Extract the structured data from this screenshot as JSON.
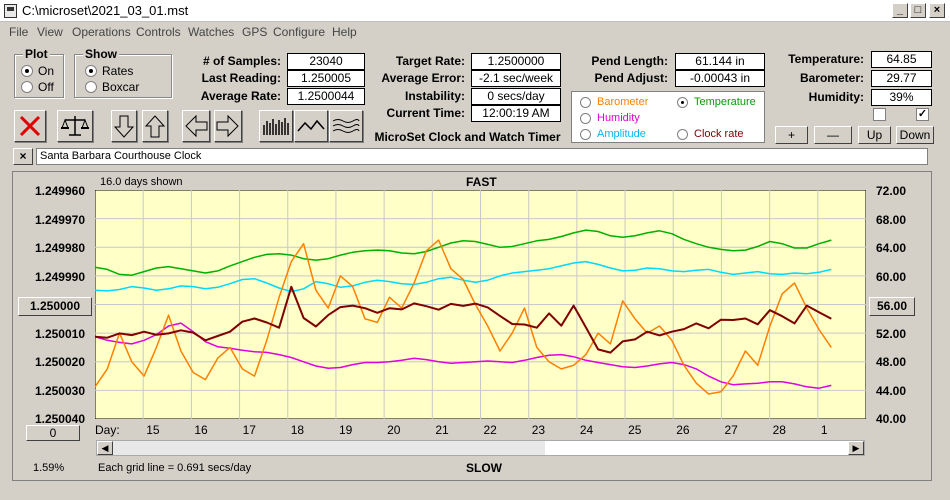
{
  "window": {
    "title": "C:\\microset\\2021_03_01.mst"
  },
  "menu": [
    "File",
    "View",
    "Operations",
    "Controls",
    "Watches",
    "GPS",
    "Configure",
    "Help"
  ],
  "plot_group": {
    "title": "Plot",
    "options": [
      "On",
      "Off"
    ],
    "selected": "On"
  },
  "show_group": {
    "title": "Show",
    "options": [
      "Rates",
      "Boxcar"
    ],
    "selected": "Rates"
  },
  "fields": {
    "samples": {
      "label": "# of Samples:",
      "value": "23040"
    },
    "last_reading": {
      "label": "Last Reading:",
      "value": "1.250005"
    },
    "average_rate": {
      "label": "Average Rate:",
      "value": "1.2500044"
    },
    "target_rate": {
      "label": "Target Rate:",
      "value": "1.2500000"
    },
    "average_error": {
      "label": "Average Error:",
      "value": "-2.1 sec/week"
    },
    "instability": {
      "label": "Instability:",
      "value": "0 secs/day"
    },
    "current_time": {
      "label": "Current Time:",
      "value": "12:00:19 AM"
    },
    "pend_length": {
      "label": "Pend Length:",
      "value": "61.144 in"
    },
    "pend_adjust": {
      "label": "Pend Adjust:",
      "value": "-0.00043 in"
    },
    "temperature": {
      "label": "Temperature:",
      "value": "64.85"
    },
    "barometer": {
      "label": "Barometer:",
      "value": "29.77"
    },
    "humidity": {
      "label": "Humidity:",
      "value": "39%"
    }
  },
  "app_caption": "MicroSet Clock and Watch Timer",
  "legend": {
    "barometer": {
      "label": "Barometer",
      "color": "#ff8000"
    },
    "temperature": {
      "label": "Temperature",
      "color": "#00a000",
      "selected": true
    },
    "humidity": {
      "label": "Humidity",
      "color": "#e000e0"
    },
    "amplitude": {
      "label": "Amplitude",
      "color": "#00c8ff"
    },
    "clock_rate": {
      "label": "Clock rate",
      "color": "#800000"
    }
  },
  "checkboxes": [
    {
      "checked": false
    },
    {
      "checked": true
    }
  ],
  "small_buttons": [
    "+",
    "—",
    "Up",
    "Down"
  ],
  "clock_name": "Santa Barbara Courthouse Clock",
  "chart_header": {
    "days_shown": "16.0 days shown",
    "fast": "FAST",
    "slow": "SLOW",
    "grid_note": "Each grid line = 0.691 secs/day",
    "zoom": "1.59%",
    "day_label": "Day:"
  },
  "left_center_button": "1.250000",
  "right_center_button": "56.00",
  "bottom_left_button": "0",
  "chart_data": {
    "type": "line",
    "x_tick_labels": [
      "15",
      "16",
      "17",
      "18",
      "19",
      "20",
      "21",
      "22",
      "23",
      "24",
      "25",
      "26",
      "27",
      "28",
      "1"
    ],
    "y_left_ticks": [
      "1.249960",
      "1.249970",
      "1.249980",
      "1.249990",
      "1.250000",
      "1.250010",
      "1.250020",
      "1.250030",
      "1.250040"
    ],
    "y_right_ticks": [
      "72.00",
      "68.00",
      "64.00",
      "60.00",
      "56.00",
      "52.00",
      "48.00",
      "44.00",
      "40.00"
    ],
    "ylim_left": [
      1.24996,
      1.25004
    ],
    "ylim_right": [
      40,
      72
    ],
    "x_range_days": [
      14,
      30
    ],
    "grid": true,
    "series": [
      {
        "color": "#00b000",
        "values": [
          61.2,
          60.9,
          60.2,
          60.1,
          60.6,
          61.1,
          61.3,
          61.0,
          60.7,
          60.4,
          60.7,
          61.4,
          62.0,
          62.6,
          63.0,
          63.1,
          62.9,
          62.4,
          62.2,
          62.4,
          62.9,
          63.3,
          63.5,
          63.6,
          63.5,
          63.2,
          63.1,
          63.4,
          64.0,
          64.6,
          64.9,
          64.8,
          64.4,
          64.0,
          64.1,
          64.5,
          64.9,
          65.1,
          65.5,
          66.0,
          66.4,
          66.2,
          65.6,
          65.4,
          65.6,
          66.0,
          66.3,
          65.9,
          65.1,
          64.5,
          64.0,
          63.7,
          63.5,
          63.6,
          64.1,
          64.8,
          64.5,
          63.9,
          63.9,
          64.5,
          65.0
        ]
      },
      {
        "color": "#00d8ff",
        "values": [
          58.0,
          57.9,
          58.1,
          58.5,
          58.3,
          58.0,
          58.2,
          58.6,
          58.5,
          58.2,
          58.4,
          58.9,
          59.5,
          59.6,
          59.0,
          58.3,
          57.8,
          58.2,
          59.2,
          58.9,
          58.4,
          58.6,
          59.1,
          59.4,
          59.2,
          58.9,
          58.8,
          59.1,
          59.6,
          59.8,
          59.4,
          59.1,
          59.4,
          60.0,
          60.4,
          60.6,
          60.8,
          61.0,
          61.4,
          61.8,
          62.0,
          61.6,
          61.1,
          60.7,
          60.8,
          61.1,
          61.0,
          60.7,
          60.6,
          60.8,
          60.9,
          60.5,
          60.2,
          60.4,
          60.6,
          60.3,
          60.2,
          60.4,
          60.3,
          60.5,
          60.9
        ]
      },
      {
        "color": "#e000e0",
        "values": [
          51.5,
          51.0,
          50.7,
          50.5,
          51.0,
          51.8,
          53.0,
          53.4,
          52.2,
          50.8,
          50.1,
          49.9,
          49.6,
          49.4,
          49.3,
          49.0,
          48.6,
          48.0,
          47.4,
          47.1,
          47.2,
          47.6,
          47.9,
          47.9,
          48.0,
          48.2,
          48.5,
          48.3,
          48.0,
          47.8,
          47.9,
          48.0,
          48.1,
          48.0,
          47.9,
          48.2,
          48.6,
          48.9,
          49.0,
          48.7,
          48.2,
          47.9,
          47.6,
          47.3,
          47.2,
          47.4,
          47.7,
          47.9,
          47.6,
          47.0,
          46.0,
          45.2,
          44.8,
          44.9,
          45.0,
          45.2,
          45.2,
          44.9,
          44.5,
          44.3,
          44.7
        ]
      },
      {
        "color": "#ff8000",
        "values": [
          44.5,
          47.0,
          52.0,
          48.0,
          46.0,
          50.0,
          54.5,
          49.5,
          46.5,
          45.5,
          48.5,
          50.0,
          47.0,
          46.0,
          51.0,
          57.0,
          62.0,
          64.5,
          58.0,
          55.5,
          60.0,
          58.5,
          54.0,
          53.5,
          57.0,
          55.5,
          59.0,
          63.5,
          65.0,
          61.0,
          59.5,
          56.0,
          53.0,
          49.5,
          52.0,
          55.5,
          50.0,
          48.0,
          47.0,
          47.5,
          49.0,
          52.0,
          50.5,
          56.5,
          54.0,
          52.0,
          53.0,
          51.0,
          47.5,
          45.0,
          43.5,
          43.8,
          46.0,
          49.5,
          47.5,
          53.0,
          57.5,
          59.0,
          55.5,
          52.5,
          50.0
        ]
      },
      {
        "color": "#800000",
        "values": [
          1.2500113,
          1.2500116,
          1.2500101,
          1.2500107,
          1.2500095,
          1.2500106,
          1.2500101,
          1.250009,
          1.2500098,
          1.2500125,
          1.250011,
          1.2500095,
          1.250006,
          1.2500049,
          1.2500063,
          1.2500081,
          1.2499938,
          1.2500047,
          1.2500077,
          1.2500037,
          1.2500009,
          1.2500004,
          1.2500013,
          1.2500029,
          1.2500013,
          1.2500017,
          1.2499996,
          1.2500006,
          1.2500018,
          1.2499998,
          1.2500005,
          1.2499997,
          1.250001,
          1.250004,
          1.2500068,
          1.250007,
          1.2500081,
          1.2500031,
          1.2500074,
          1.2500004,
          1.250008,
          1.2500157,
          1.2500168,
          1.2500129,
          1.2500122,
          1.2500095,
          1.2500108,
          1.2500095,
          1.2500086,
          1.2500066,
          1.2500083,
          1.2500053,
          1.2500054,
          1.2500049,
          1.2500069,
          1.250002,
          1.2500041,
          1.2500066,
          1.2500004,
          1.2500027,
          1.250005
        ]
      }
    ]
  }
}
